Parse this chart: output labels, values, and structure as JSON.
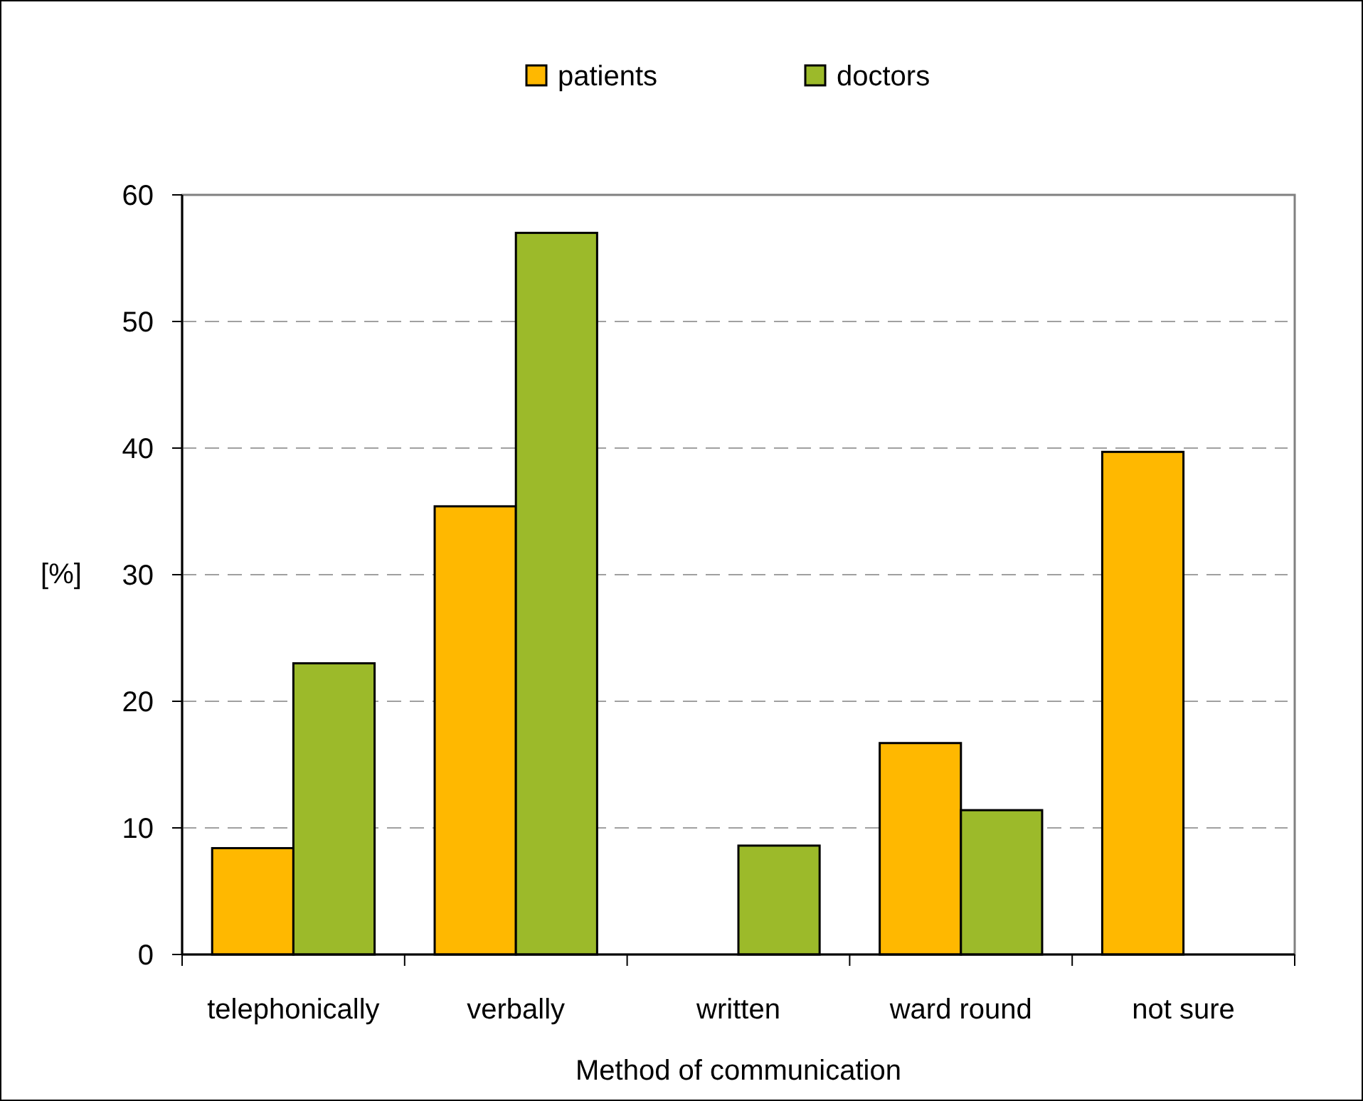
{
  "chart_data": {
    "type": "bar",
    "xlabel": "Method of communication",
    "ylabel": "[%]",
    "categories": [
      "telephonically",
      "verbally",
      "written",
      "ward round",
      "not sure"
    ],
    "series": [
      {
        "name": "patients",
        "color": "#ffb800",
        "values": [
          8.4,
          35.4,
          null,
          16.7,
          39.7
        ]
      },
      {
        "name": "doctors",
        "color": "#9cba2a",
        "values": [
          23.0,
          57.0,
          8.6,
          11.4,
          null
        ]
      }
    ],
    "ylim": [
      0,
      60
    ],
    "yticks": [
      0,
      10,
      20,
      30,
      40,
      50,
      60
    ],
    "grid": "y",
    "legend": "top"
  }
}
